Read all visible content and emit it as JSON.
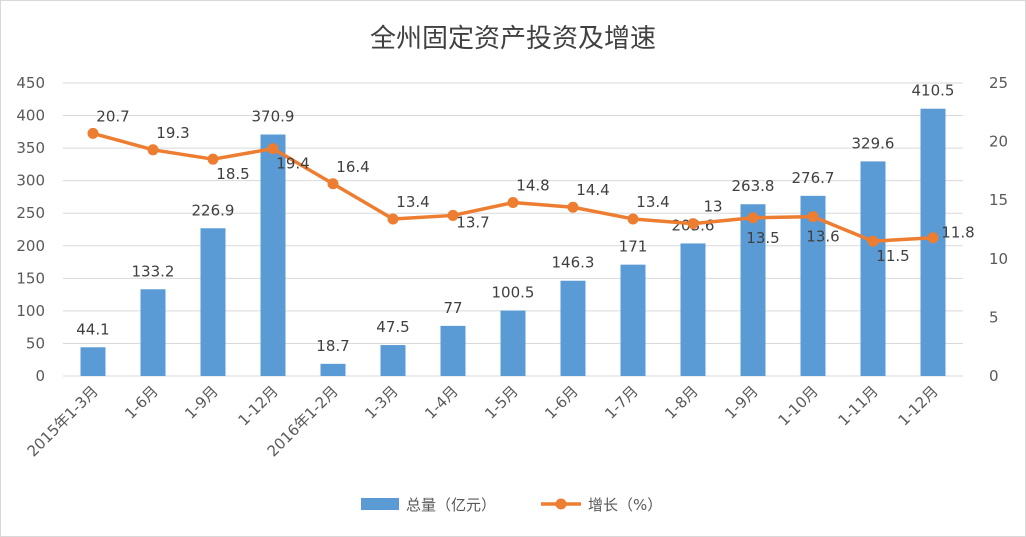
{
  "chart_data": {
    "type": "bar+line",
    "title": "全州固定资产投资及增速",
    "categories": [
      "2015年1-3月",
      "1-6月",
      "1-9月",
      "1-12月",
      "2016年1-2月",
      "1-3月",
      "1-4月",
      "1-5月",
      "1-6月",
      "1-7月",
      "1-8月",
      "1-9月",
      "1-10月",
      "1-11月",
      "1-12月"
    ],
    "series": [
      {
        "name": "总量（亿元）",
        "type": "bar",
        "axis": "left",
        "color": "#5B9BD5",
        "values": [
          44.1,
          133.2,
          226.9,
          370.9,
          18.7,
          47.5,
          77,
          100.5,
          146.3,
          171,
          203.6,
          263.8,
          276.7,
          329.6,
          410.5
        ],
        "labels": [
          "44.1",
          "133.2",
          "226.9",
          "370.9",
          "18.7",
          "47.5",
          "77",
          "100.5",
          "146.3",
          "171",
          "203.6",
          "263.8",
          "276.7",
          "329.6",
          "410.5"
        ]
      },
      {
        "name": "增长（%）",
        "type": "line",
        "axis": "right",
        "color": "#ED7D31",
        "values": [
          20.7,
          19.3,
          18.5,
          19.4,
          16.4,
          13.4,
          13.7,
          14.8,
          14.4,
          13.4,
          13,
          13.5,
          13.6,
          11.5,
          11.8
        ],
        "labels": [
          "20.7",
          "19.3",
          "18.5",
          "19.4",
          "16.4",
          "13.4",
          "13.7",
          "14.8",
          "14.4",
          "13.4",
          "13",
          "13.5",
          "13.6",
          "11.5",
          "11.8"
        ]
      }
    ],
    "y_left": {
      "min": 0,
      "max": 450,
      "step": 50,
      "ticks": [
        "0",
        "50",
        "100",
        "150",
        "200",
        "250",
        "300",
        "350",
        "400",
        "450"
      ]
    },
    "y_right": {
      "min": 0,
      "max": 25,
      "step": 5,
      "ticks": [
        "0",
        "5",
        "10",
        "15",
        "20",
        "25"
      ]
    },
    "grid": true,
    "legend": "bottom"
  }
}
